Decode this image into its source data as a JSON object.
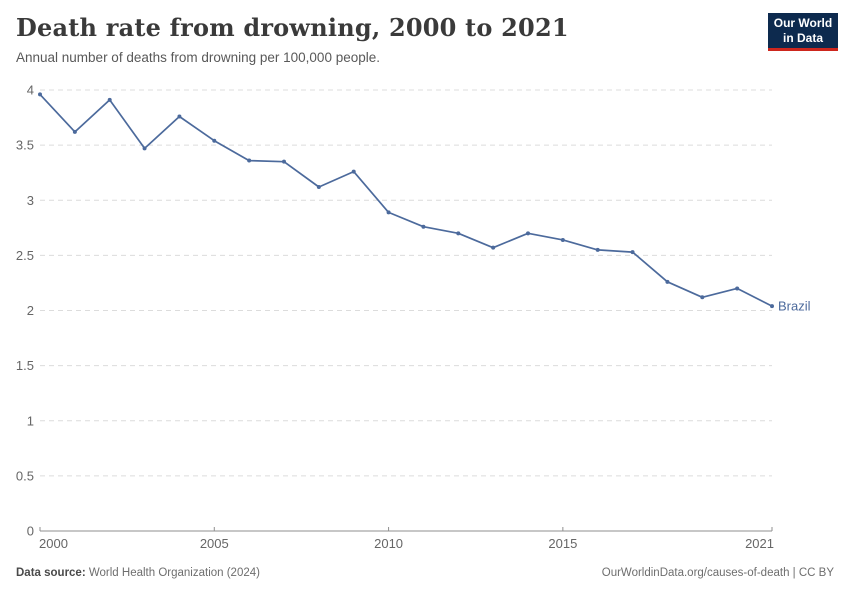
{
  "chart_data": {
    "type": "line",
    "title": "Death rate from drowning, 2000 to 2021",
    "subtitle": "Annual number of deaths from drowning per 100,000 people.",
    "x": [
      2000,
      2001,
      2002,
      2003,
      2004,
      2005,
      2006,
      2007,
      2008,
      2009,
      2010,
      2011,
      2012,
      2013,
      2014,
      2015,
      2016,
      2017,
      2018,
      2019,
      2020,
      2021
    ],
    "series": [
      {
        "name": "Brazil",
        "color": "#4C6A9C",
        "values": [
          3.96,
          3.62,
          3.91,
          3.47,
          3.76,
          3.54,
          3.36,
          3.35,
          3.12,
          3.26,
          2.89,
          2.76,
          2.7,
          2.57,
          2.7,
          2.64,
          2.55,
          2.53,
          2.26,
          2.12,
          2.2,
          2.04
        ]
      }
    ],
    "x_ticks": [
      2000,
      2005,
      2010,
      2015,
      2021
    ],
    "y_ticks": [
      0,
      0.5,
      1,
      1.5,
      2,
      2.5,
      3,
      3.5,
      4
    ],
    "ylim": [
      0,
      4
    ],
    "xlabel": "",
    "ylabel": "",
    "grid": "horizontal-dashed",
    "legend_position": "end-of-line-label",
    "end_label": "Brazil"
  },
  "logo": {
    "line1": "Our World",
    "line2": "in Data"
  },
  "footer": {
    "source_label": "Data source:",
    "source_value": "World Health Organization (2024)",
    "credit": "OurWorldinData.org/causes-of-death | CC BY"
  },
  "colors": {
    "line": "#4C6A9C",
    "grid": "#dcdcdc",
    "axis": "#8f8f8f",
    "tick_label": "#666666",
    "logo_bg": "#0d2a4e",
    "logo_red": "#cd261d"
  }
}
